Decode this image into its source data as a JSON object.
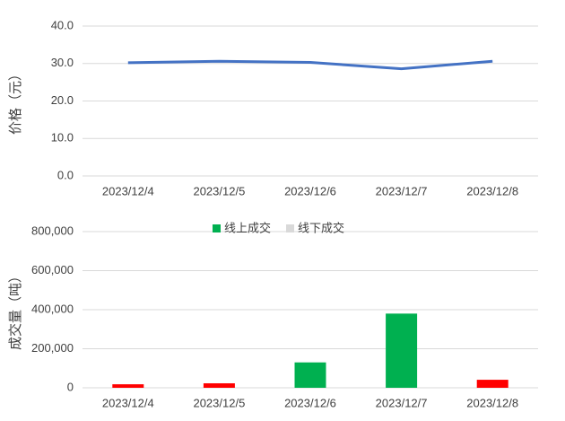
{
  "chart_data": [
    {
      "type": "line",
      "y_label": "价格（元）",
      "categories": [
        "2023/12/4",
        "2023/12/5",
        "2023/12/6",
        "2023/12/7",
        "2023/12/8"
      ],
      "series": [
        {
          "name": "价格",
          "color": "#4472c4",
          "values": [
            30.2,
            30.6,
            30.3,
            28.6,
            30.6
          ]
        }
      ],
      "ylim": [
        0,
        40
      ],
      "yticks": [
        {
          "value": 0,
          "label": "0.0"
        },
        {
          "value": 10,
          "label": "10.0"
        },
        {
          "value": 20,
          "label": "20.0"
        },
        {
          "value": 30,
          "label": "30.0"
        },
        {
          "value": 40,
          "label": "40.0"
        }
      ],
      "grid": true,
      "legend": false
    },
    {
      "type": "bar",
      "y_label": "成交量（吨）",
      "categories": [
        "2023/12/4",
        "2023/12/5",
        "2023/12/6",
        "2023/12/7",
        "2023/12/8"
      ],
      "series": [
        {
          "name": "线上成交",
          "color": "#00b050",
          "point_colors": [
            "#ff0000",
            "#ff0000",
            "#00b050",
            "#00b050",
            "#ff0000"
          ],
          "values": [
            18000,
            23000,
            130000,
            380000,
            41000
          ]
        },
        {
          "name": "线下成交",
          "color": "#d9d9d9",
          "values": [
            0,
            0,
            0,
            0,
            0
          ]
        }
      ],
      "ylim": [
        0,
        800000
      ],
      "yticks": [
        0,
        {
          "value": 200000,
          "label": "200,000"
        },
        {
          "value": 400000,
          "label": "400,000"
        },
        {
          "value": 600000,
          "label": "600,000"
        },
        {
          "value": 800000,
          "label": "800,000"
        }
      ],
      "grid": true,
      "legend": "top"
    }
  ]
}
